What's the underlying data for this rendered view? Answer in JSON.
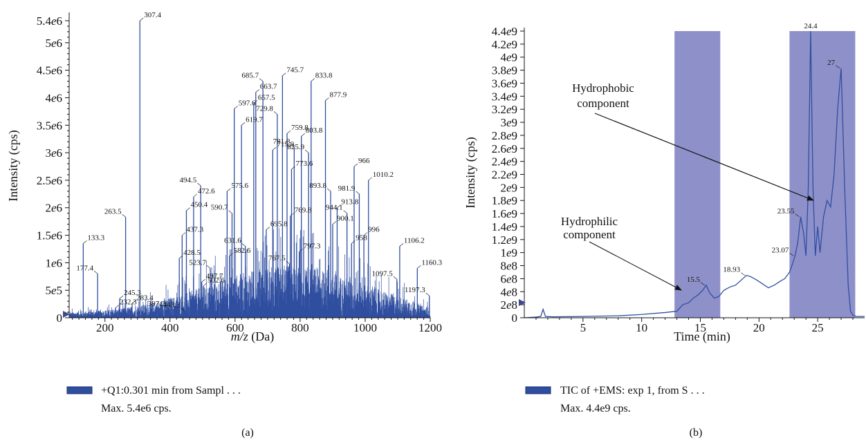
{
  "chart_data": [
    {
      "panel": "(a)",
      "type": "bar",
      "xlabel_italic": "m/z",
      "xlabel_rest": " (Da)",
      "ylabel": "Intensity (cps)",
      "xlim": [
        90,
        1200
      ],
      "ylim": [
        0,
        5400000
      ],
      "x_ticks": [
        200,
        400,
        600,
        800,
        1000,
        1200
      ],
      "y_ticks": [
        {
          "v": 0,
          "label": "0"
        },
        {
          "v": 500000,
          "label": "5e5"
        },
        {
          "v": 1000000,
          "label": "1e6"
        },
        {
          "v": 1500000,
          "label": "1.5e6"
        },
        {
          "v": 2000000,
          "label": "2e6"
        },
        {
          "v": 2500000,
          "label": "2.5e6"
        },
        {
          "v": 3000000,
          "label": "3e6"
        },
        {
          "v": 3500000,
          "label": "3.5e6"
        },
        {
          "v": 4000000,
          "label": "4e6"
        },
        {
          "v": 4500000,
          "label": "4.5e6"
        },
        {
          "v": 5000000,
          "label": "5e6"
        },
        {
          "v": 5400000,
          "label": "5.4e6"
        }
      ],
      "peaks": [
        {
          "x": 133.3,
          "y": 1350000,
          "label": "133.3"
        },
        {
          "x": 177.4,
          "y": 800000,
          "label": "177.4"
        },
        {
          "x": 232.3,
          "y": 180000,
          "label": "232.3"
        },
        {
          "x": 245.3,
          "y": 350000,
          "label": "245.3"
        },
        {
          "x": 263.5,
          "y": 1830000,
          "label": "263.5"
        },
        {
          "x": 283.4,
          "y": 260000,
          "label": "283.4"
        },
        {
          "x": 307.4,
          "y": 5400000,
          "label": "307.4"
        },
        {
          "x": 397.2,
          "y": 150000,
          "label": "397.2"
        },
        {
          "x": 428.5,
          "y": 1080000,
          "label": "428.5"
        },
        {
          "x": 437.3,
          "y": 1500000,
          "label": "437.3"
        },
        {
          "x": 443.3,
          "y": 130000,
          "label": "443.3"
        },
        {
          "x": 450.4,
          "y": 1950000,
          "label": "450.4"
        },
        {
          "x": 472.6,
          "y": 2200000,
          "label": "472.6"
        },
        {
          "x": 494.5,
          "y": 2400000,
          "label": "494.5"
        },
        {
          "x": 497.7,
          "y": 650000,
          "label": "497.7"
        },
        {
          "x": 502.6,
          "y": 580000,
          "label": "502.6"
        },
        {
          "x": 523.7,
          "y": 900000,
          "label": "523.7"
        },
        {
          "x": 575.6,
          "y": 2300000,
          "label": "575.6"
        },
        {
          "x": 582.6,
          "y": 1120000,
          "label": "582.6"
        },
        {
          "x": 590.7,
          "y": 1900000,
          "label": "590.7"
        },
        {
          "x": 597.6,
          "y": 3800000,
          "label": "597.6"
        },
        {
          "x": 619.7,
          "y": 3500000,
          "label": "619.7"
        },
        {
          "x": 631.6,
          "y": 1300000,
          "label": "631.6"
        },
        {
          "x": 657.5,
          "y": 3900000,
          "label": "657.5"
        },
        {
          "x": 663.7,
          "y": 4100000,
          "label": "663.7"
        },
        {
          "x": 685.7,
          "y": 4300000,
          "label": "685.7"
        },
        {
          "x": 695.8,
          "y": 1600000,
          "label": "695.8"
        },
        {
          "x": 715.9,
          "y": 3050000,
          "label": "715.9"
        },
        {
          "x": 729.8,
          "y": 3700000,
          "label": "729.8"
        },
        {
          "x": 745.7,
          "y": 4400000,
          "label": "745.7"
        },
        {
          "x": 759.8,
          "y": 3350000,
          "label": "759.8"
        },
        {
          "x": 767.5,
          "y": 980000,
          "label": "767.5"
        },
        {
          "x": 769.8,
          "y": 1850000,
          "label": "769.8"
        },
        {
          "x": 773.6,
          "y": 2700000,
          "label": "773.6"
        },
        {
          "x": 781.8,
          "y": 3100000,
          "label": "781.8"
        },
        {
          "x": 797.3,
          "y": 1200000,
          "label": "797.3"
        },
        {
          "x": 803.8,
          "y": 3300000,
          "label": "803.8"
        },
        {
          "x": 825.9,
          "y": 3000000,
          "label": "825.9"
        },
        {
          "x": 833.8,
          "y": 4300000,
          "label": "833.8"
        },
        {
          "x": 877.9,
          "y": 3950000,
          "label": "877.9"
        },
        {
          "x": 893.8,
          "y": 2300000,
          "label": "893.8"
        },
        {
          "x": 900.1,
          "y": 1700000,
          "label": "900.1"
        },
        {
          "x": 913.8,
          "y": 2000000,
          "label": "913.8"
        },
        {
          "x": 944.1,
          "y": 1900000,
          "label": "944.1"
        },
        {
          "x": 958,
          "y": 1350000,
          "label": "958"
        },
        {
          "x": 966,
          "y": 2750000,
          "label": "966"
        },
        {
          "x": 981.9,
          "y": 2250000,
          "label": "981.9"
        },
        {
          "x": 996,
          "y": 1500000,
          "label": "996"
        },
        {
          "x": 1010.2,
          "y": 2500000,
          "label": "1010.2"
        },
        {
          "x": 1097.5,
          "y": 700000,
          "label": "1097.5"
        },
        {
          "x": 1106.2,
          "y": 1300000,
          "label": "1106.2"
        },
        {
          "x": 1160.3,
          "y": 900000,
          "label": "1160.3"
        },
        {
          "x": 1197.3,
          "y": 400000,
          "label": "1197.3"
        }
      ],
      "legend": {
        "line1": "+Q1:0.301 min from Sampl . . .",
        "line2": "Max. 5.4e6 cps."
      },
      "color": "#2f4ea0"
    },
    {
      "panel": "(b)",
      "type": "line",
      "xlabel": "Time (min)",
      "ylabel": "Intensity (cps)",
      "xlim": [
        0,
        29
      ],
      "ylim": [
        0,
        4400000000
      ],
      "x_ticks": [
        5,
        10,
        15,
        20,
        25
      ],
      "y_ticks": [
        {
          "v": 0,
          "label": "0"
        },
        {
          "v": 200000000,
          "label": "2e8"
        },
        {
          "v": 400000000,
          "label": "4e8"
        },
        {
          "v": 600000000,
          "label": "6e8"
        },
        {
          "v": 800000000,
          "label": "8e8"
        },
        {
          "v": 1000000000,
          "label": "1e9"
        },
        {
          "v": 1200000000,
          "label": "1.2e9"
        },
        {
          "v": 1400000000,
          "label": "1.4e9"
        },
        {
          "v": 1600000000,
          "label": "1.6e9"
        },
        {
          "v": 1800000000,
          "label": "1.8e9"
        },
        {
          "v": 2000000000,
          "label": "2e9"
        },
        {
          "v": 2200000000,
          "label": "2.2e9"
        },
        {
          "v": 2400000000,
          "label": "2.4e9"
        },
        {
          "v": 2600000000,
          "label": "2.6e9"
        },
        {
          "v": 2800000000,
          "label": "2.8e9"
        },
        {
          "v": 3000000000,
          "label": "3e9"
        },
        {
          "v": 3200000000,
          "label": "3.2e9"
        },
        {
          "v": 3400000000,
          "label": "3.4e9"
        },
        {
          "v": 3600000000,
          "label": "3.6e9"
        },
        {
          "v": 3800000000,
          "label": "3.8e9"
        },
        {
          "v": 4000000000,
          "label": "4e9"
        },
        {
          "v": 4200000000,
          "label": "4.2e9"
        },
        {
          "v": 4400000000,
          "label": "4.4e9"
        }
      ],
      "x": [
        0,
        1,
        1.4,
        1.6,
        1.8,
        2.5,
        5,
        8,
        10,
        12,
        13,
        13.5,
        14,
        14.4,
        14.8,
        15.2,
        15.5,
        15.8,
        16.2,
        16.6,
        17,
        17.5,
        18,
        18.5,
        18.93,
        19.3,
        19.8,
        20.3,
        20.8,
        21.3,
        21.8,
        22.2,
        22.6,
        22.9,
        23.07,
        23.3,
        23.55,
        23.8,
        24.0,
        24.2,
        24.4,
        24.6,
        24.8,
        25.0,
        25.2,
        25.5,
        25.8,
        26.1,
        26.4,
        26.7,
        27.0,
        27.3,
        27.6,
        27.8,
        28.0,
        28.3,
        29
      ],
      "y": [
        0,
        10000000,
        20000000,
        130000000,
        20000000,
        15000000,
        20000000,
        30000000,
        50000000,
        80000000,
        100000000,
        200000000,
        230000000,
        300000000,
        350000000,
        420000000,
        500000000,
        380000000,
        300000000,
        330000000,
        420000000,
        470000000,
        500000000,
        580000000,
        650000000,
        630000000,
        580000000,
        520000000,
        460000000,
        500000000,
        560000000,
        600000000,
        700000000,
        850000000,
        950000000,
        1150000000,
        1550000000,
        1300000000,
        950000000,
        2000000000,
        4400000000,
        2000000000,
        950000000,
        1400000000,
        1000000000,
        1550000000,
        1800000000,
        1700000000,
        2200000000,
        3200000000,
        3830000000,
        2000000000,
        500000000,
        100000000,
        40000000,
        20000000,
        20000000
      ],
      "peak_labels": [
        {
          "x": 15.5,
          "y": 500000000,
          "label": "15.5"
        },
        {
          "x": 18.93,
          "y": 650000000,
          "label": "18.93"
        },
        {
          "x": 23.07,
          "y": 950000000,
          "label": "23.07"
        },
        {
          "x": 23.55,
          "y": 1550000000,
          "label": "23.55"
        },
        {
          "x": 24.4,
          "y": 4400000000,
          "label": "24.4"
        },
        {
          "x": 27,
          "y": 3830000000,
          "label": "27"
        }
      ],
      "shaded_regions": [
        [
          12.8,
          16.7
        ],
        [
          22.6,
          28.2
        ]
      ],
      "annotations": [
        {
          "lines": [
            "Hydrophobic",
            "component"
          ]
        },
        {
          "lines": [
            "Hydrophilic",
            "component"
          ]
        }
      ],
      "legend": {
        "line1": "TIC of +EMS: exp 1, from S . . .",
        "line2": "Max. 4.4e9 cps."
      },
      "color": "#2f4ea0",
      "shade_color": "#8e90c9"
    }
  ]
}
